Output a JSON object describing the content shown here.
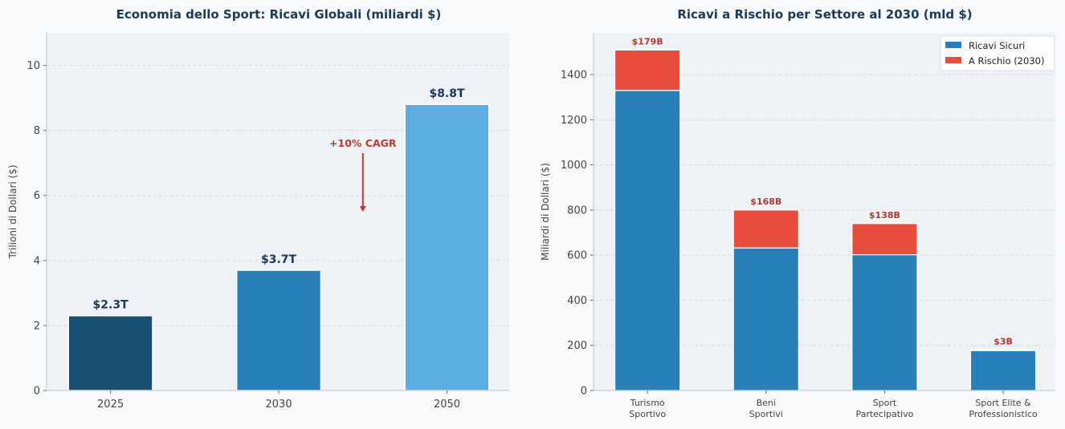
{
  "chart_data": [
    {
      "type": "bar",
      "title": "Economia dello Sport: Ricavi Globali (miliardi $)",
      "xlabel": "",
      "ylabel": "Trilioni di Dollari ($)",
      "categories": [
        "2025",
        "2030",
        "2050"
      ],
      "values": [
        2.3,
        3.7,
        8.8
      ],
      "bar_labels": [
        "$2.3T",
        "$3.7T",
        "$8.8T"
      ],
      "bar_colors": [
        "#1b4f72",
        "#2980b9",
        "#5dade2"
      ],
      "ylim": [
        0,
        11
      ],
      "yticks": [
        0,
        2,
        4,
        6,
        8,
        10
      ],
      "grid": "y-dashed",
      "annotations": [
        {
          "text": "+10% CAGR",
          "x_category_pos": 1.5,
          "text_y": 7.5,
          "arrow_from_y": 7.3,
          "arrow_to_y": 5.5,
          "color": "#c0392b"
        }
      ]
    },
    {
      "type": "bar",
      "stacked": true,
      "title": "Ricavi a Rischio per Settore al 2030 (mld $)",
      "xlabel": "",
      "ylabel": "Miliardi di Dollari ($)",
      "categories": [
        [
          "Turismo",
          "Sportivo"
        ],
        [
          "Beni",
          "Sportivi"
        ],
        [
          "Sport",
          "Partecipativo"
        ],
        [
          "Sport Elite &",
          "Professionistico"
        ]
      ],
      "series": [
        {
          "name": "Ricavi Sicuri",
          "color": "#2980b9",
          "values": [
            1330,
            632,
            602,
            177
          ]
        },
        {
          "name": "A Rischio (2030)",
          "color": "#e74c3c",
          "values": [
            179,
            168,
            138,
            3
          ]
        }
      ],
      "bar_labels": [
        "$179B",
        "$168B",
        "$138B",
        "$3B"
      ],
      "ylim": [
        0,
        1585
      ],
      "yticks": [
        0,
        200,
        400,
        600,
        800,
        1000,
        1200,
        1400
      ],
      "grid": "y-dashed",
      "legend": "top-right"
    }
  ]
}
